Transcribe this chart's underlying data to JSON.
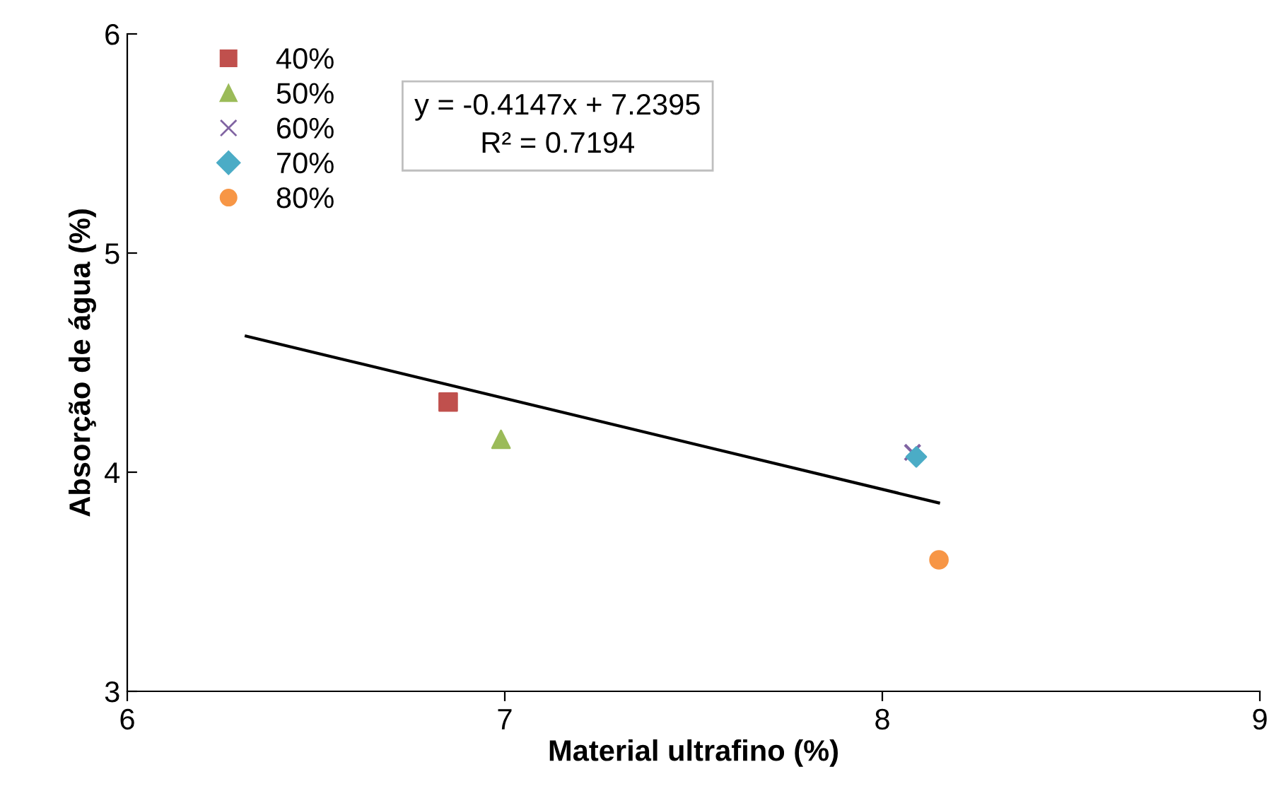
{
  "chart_data": {
    "type": "scatter",
    "xlabel": "Material ultrafino (%)",
    "ylabel": "Absorção de água (%)",
    "xlim": [
      6,
      9
    ],
    "xticks": [
      6,
      7,
      8,
      9
    ],
    "ylim": [
      3,
      6
    ],
    "yticks": [
      3,
      4,
      5,
      6
    ],
    "grid": false,
    "legend": "top left",
    "annotations": [
      "y = -0.4147x + 7.2395\nR² = 0.7194"
    ],
    "series": [
      {
        "name": "40%",
        "color": "#c0504d",
        "marker": "square",
        "x": [
          6.85
        ],
        "values": [
          4.32
        ]
      },
      {
        "name": "50%",
        "color": "#9bbb59",
        "marker": "triangle",
        "x": [
          6.99
        ],
        "values": [
          4.15
        ]
      },
      {
        "name": "60%",
        "color": "#8064a2",
        "marker": "cross",
        "x": [
          8.08
        ],
        "values": [
          4.09
        ]
      },
      {
        "name": "70%",
        "color": "#4bacc6",
        "marker": "diamond",
        "x": [
          8.09
        ],
        "values": [
          4.07
        ]
      },
      {
        "name": "80%",
        "color": "#f79646",
        "marker": "circle",
        "x": [
          8.15
        ],
        "values": [
          3.6
        ]
      },
      {
        "type": "line",
        "color": "#000000",
        "marker": "none",
        "x": [
          6.315,
          8.149
        ],
        "values": [
          4.621,
          3.86
        ]
      }
    ]
  }
}
